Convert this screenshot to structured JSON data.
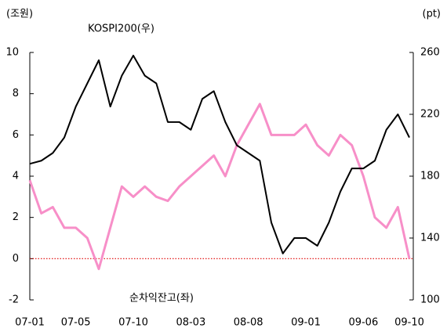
{
  "chart_data": {
    "type": "line",
    "y_unit_label": "(조원)",
    "y2_unit_label": "(pt)",
    "categories": [
      "07-01",
      null,
      null,
      null,
      "07-05",
      null,
      null,
      null,
      null,
      "07-10",
      null,
      null,
      null,
      null,
      "08-03",
      null,
      null,
      null,
      null,
      "08-08",
      null,
      null,
      null,
      null,
      "09-01",
      null,
      null,
      null,
      null,
      "09-06",
      null,
      null,
      null,
      "09-10"
    ],
    "series": [
      {
        "name": "KOSPI200(우)",
        "color": "#000000",
        "axis": "y2",
        "values": [
          188,
          190,
          195,
          205,
          225,
          240,
          255,
          225,
          245,
          258,
          245,
          240,
          215,
          215,
          210,
          230,
          235,
          215,
          200,
          195,
          190,
          150,
          130,
          140,
          140,
          135,
          150,
          170,
          185,
          185,
          190,
          210,
          220,
          205
        ]
      },
      {
        "name": "순차익잔고(좌)",
        "color": "#f78fc8",
        "axis": "y",
        "values": [
          3.8,
          2.2,
          2.5,
          1.5,
          1.5,
          1.0,
          -0.5,
          1.5,
          3.5,
          3.0,
          3.5,
          3.0,
          2.8,
          3.5,
          4.0,
          4.5,
          5.0,
          4.0,
          5.5,
          6.5,
          7.5,
          6.0,
          6.0,
          6.0,
          6.5,
          5.5,
          5.0,
          6.0,
          5.5,
          4.0,
          2.0,
          1.5,
          2.5,
          0.0
        ]
      }
    ],
    "ylim": [
      -2,
      10
    ],
    "yticks": [
      -2,
      0,
      2,
      4,
      6,
      8,
      10
    ],
    "y2lim": [
      100,
      260
    ],
    "y2ticks": [
      100,
      140,
      180,
      220,
      260
    ],
    "reference_line": {
      "value": 0,
      "color": "#e00000"
    }
  }
}
